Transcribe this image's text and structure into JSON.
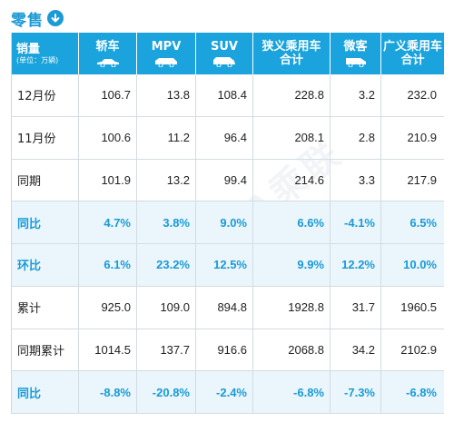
{
  "title": "零售",
  "header": {
    "first": "销量",
    "first_sub": "(单位：万辆)",
    "columns": [
      "轿车",
      "MPV",
      "SUV",
      "狭义乘用车\n合计",
      "微客",
      "广义乘用车\n合计"
    ]
  },
  "rows": [
    {
      "label": "12月份",
      "values": [
        "106.7",
        "13.8",
        "108.4",
        "228.8",
        "3.2",
        "232.0"
      ],
      "pct": false
    },
    {
      "label": "11月份",
      "values": [
        "100.6",
        "11.2",
        "96.4",
        "208.1",
        "2.8",
        "210.9"
      ],
      "pct": false
    },
    {
      "label": "同期",
      "values": [
        "101.9",
        "13.2",
        "99.4",
        "214.6",
        "3.3",
        "217.9"
      ],
      "pct": false
    },
    {
      "label": "同比",
      "values": [
        "4.7%",
        "3.8%",
        "9.0%",
        "6.6%",
        "-4.1%",
        "6.5%"
      ],
      "pct": true
    },
    {
      "label": "环比",
      "values": [
        "6.1%",
        "23.2%",
        "12.5%",
        "9.9%",
        "12.2%",
        "10.0%"
      ],
      "pct": true
    },
    {
      "label": "累计",
      "values": [
        "925.0",
        "109.0",
        "894.8",
        "1928.8",
        "31.7",
        "1960.5"
      ],
      "pct": false
    },
    {
      "label": "同期累计",
      "values": [
        "1014.5",
        "137.7",
        "916.6",
        "2068.8",
        "34.2",
        "2102.9"
      ],
      "pct": false
    },
    {
      "label": "同比",
      "values": [
        "-8.8%",
        "-20.8%",
        "-2.4%",
        "-6.8%",
        "-7.3%",
        "-6.8%"
      ],
      "pct": true
    }
  ],
  "watermark": "CPCA乘联",
  "colors": {
    "accent": "#1aa3dc",
    "pct_text": "#1a9ad6",
    "pct_bg": "#eaf6fc"
  },
  "icons": [
    "down-arrow-circle-icon",
    "mpv-car-icon",
    "suv-car-icon",
    "van-icon"
  ]
}
